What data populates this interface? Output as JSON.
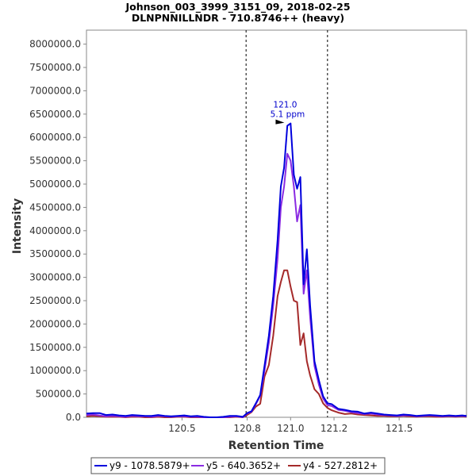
{
  "chart_data": {
    "type": "line",
    "title_line1": "Johnson_003_3999_3151_09, 2018-02-25",
    "title_line2": "DLNPNNILLNDR - 710.8746++ (heavy)",
    "xlabel": "Retention Time",
    "ylabel": "Intensity",
    "xlim": [
      120.06,
      121.81
    ],
    "ylim": [
      0,
      8300000
    ],
    "x_ticks": [
      {
        "value": 120.5,
        "label": "120.5"
      },
      {
        "value": 120.8,
        "label": "120.8"
      },
      {
        "value": 121.0,
        "label": "121.0"
      },
      {
        "value": 121.2,
        "label": "121.2"
      },
      {
        "value": 121.5,
        "label": "121.5"
      }
    ],
    "y_ticks": [
      {
        "value": 0,
        "label": "0.0"
      },
      {
        "value": 500000,
        "label": "500000.0"
      },
      {
        "value": 1000000,
        "label": "1000000.0"
      },
      {
        "value": 1500000,
        "label": "1500000.0"
      },
      {
        "value": 2000000,
        "label": "2000000.0"
      },
      {
        "value": 2500000,
        "label": "2500000.0"
      },
      {
        "value": 3000000,
        "label": "3000000.0"
      },
      {
        "value": 3500000,
        "label": "3500000.0"
      },
      {
        "value": 4000000,
        "label": "4000000.0"
      },
      {
        "value": 4500000,
        "label": "4500000.0"
      },
      {
        "value": 5000000,
        "label": "5000000.0"
      },
      {
        "value": 5500000,
        "label": "5500000.0"
      },
      {
        "value": 6000000,
        "label": "6000000.0"
      },
      {
        "value": 6500000,
        "label": "6500000.0"
      },
      {
        "value": 7000000,
        "label": "7000000.0"
      },
      {
        "value": 7500000,
        "label": "7500000.0"
      },
      {
        "value": 8000000,
        "label": "8000000.0"
      }
    ],
    "integration_bounds": [
      120.795,
      121.17
    ],
    "grid": false,
    "legend_position": "bottom",
    "annotation": {
      "x": 120.975,
      "y": 6300000,
      "line1": "121.0",
      "line2": "5.1 ppm",
      "color": "#0000cc"
    },
    "series": [
      {
        "name": "y9 - 1078.5879+",
        "color": "#0000dd",
        "x": [
          120.06,
          120.09,
          120.12,
          120.15,
          120.18,
          120.21,
          120.24,
          120.27,
          120.3,
          120.33,
          120.36,
          120.39,
          120.42,
          120.45,
          120.48,
          120.51,
          120.54,
          120.57,
          120.6,
          120.63,
          120.66,
          120.69,
          120.72,
          120.75,
          120.78,
          120.8,
          120.82,
          120.84,
          120.86,
          120.88,
          120.9,
          120.92,
          120.94,
          120.955,
          120.97,
          120.985,
          121.0,
          121.015,
          121.03,
          121.045,
          121.06,
          121.075,
          121.09,
          121.11,
          121.13,
          121.15,
          121.17,
          121.19,
          121.22,
          121.25,
          121.28,
          121.31,
          121.34,
          121.37,
          121.4,
          121.43,
          121.46,
          121.49,
          121.52,
          121.55,
          121.58,
          121.61,
          121.64,
          121.67,
          121.7,
          121.73,
          121.76,
          121.79,
          121.81
        ],
        "values": [
          80000,
          90000,
          90000,
          50000,
          60000,
          40000,
          30000,
          50000,
          40000,
          30000,
          30000,
          50000,
          30000,
          20000,
          30000,
          40000,
          20000,
          30000,
          10000,
          0,
          0,
          10000,
          30000,
          30000,
          10000,
          90000,
          130000,
          300000,
          480000,
          1100000,
          1750000,
          2600000,
          3800000,
          4950000,
          5350000,
          6250000,
          6300000,
          5200000,
          4900000,
          5150000,
          2850000,
          3600000,
          2400000,
          1200000,
          800000,
          450000,
          300000,
          280000,
          180000,
          160000,
          130000,
          120000,
          80000,
          100000,
          80000,
          60000,
          50000,
          40000,
          60000,
          50000,
          30000,
          40000,
          50000,
          40000,
          30000,
          40000,
          30000,
          40000,
          30000
        ]
      },
      {
        "name": "y5 - 640.3652+",
        "color": "#8a2be2",
        "x": [
          120.06,
          120.09,
          120.12,
          120.15,
          120.18,
          120.21,
          120.24,
          120.27,
          120.3,
          120.33,
          120.36,
          120.39,
          120.42,
          120.45,
          120.48,
          120.51,
          120.54,
          120.57,
          120.6,
          120.63,
          120.66,
          120.69,
          120.72,
          120.75,
          120.78,
          120.8,
          120.82,
          120.84,
          120.86,
          120.88,
          120.9,
          120.92,
          120.94,
          120.955,
          120.97,
          120.985,
          121.0,
          121.015,
          121.03,
          121.045,
          121.06,
          121.075,
          121.09,
          121.11,
          121.13,
          121.15,
          121.17,
          121.19,
          121.22,
          121.25,
          121.28,
          121.31,
          121.34,
          121.37,
          121.4,
          121.43,
          121.46,
          121.49,
          121.52,
          121.55,
          121.58,
          121.61,
          121.64,
          121.67,
          121.7,
          121.73,
          121.76,
          121.79,
          121.81
        ],
        "values": [
          50000,
          60000,
          40000,
          20000,
          30000,
          20000,
          10000,
          30000,
          20000,
          20000,
          10000,
          30000,
          20000,
          10000,
          20000,
          20000,
          10000,
          10000,
          0,
          0,
          0,
          0,
          10000,
          20000,
          0,
          80000,
          120000,
          280000,
          460000,
          1000000,
          1600000,
          2400000,
          3400000,
          4500000,
          4950000,
          5650000,
          5500000,
          4950000,
          4200000,
          4550000,
          2650000,
          3150000,
          2150000,
          1100000,
          700000,
          400000,
          260000,
          240000,
          160000,
          140000,
          110000,
          90000,
          70000,
          80000,
          60000,
          50000,
          40000,
          30000,
          40000,
          40000,
          20000,
          30000,
          40000,
          30000,
          20000,
          30000,
          20000,
          30000,
          20000
        ]
      },
      {
        "name": "y4 - 527.2812+",
        "color": "#a52a2a",
        "x": [
          120.06,
          120.09,
          120.12,
          120.15,
          120.18,
          120.21,
          120.24,
          120.27,
          120.3,
          120.33,
          120.36,
          120.39,
          120.42,
          120.45,
          120.48,
          120.51,
          120.54,
          120.57,
          120.6,
          120.63,
          120.66,
          120.69,
          120.72,
          120.75,
          120.78,
          120.8,
          120.82,
          120.84,
          120.86,
          120.88,
          120.9,
          120.92,
          120.94,
          120.955,
          120.97,
          120.985,
          121.0,
          121.015,
          121.03,
          121.045,
          121.06,
          121.075,
          121.09,
          121.11,
          121.13,
          121.15,
          121.17,
          121.19,
          121.22,
          121.25,
          121.28,
          121.31,
          121.34,
          121.37,
          121.4,
          121.43,
          121.46,
          121.49,
          121.52,
          121.55,
          121.58,
          121.61,
          121.64,
          121.67,
          121.7,
          121.73,
          121.76,
          121.79,
          121.81
        ],
        "values": [
          20000,
          30000,
          20000,
          10000,
          10000,
          10000,
          0,
          10000,
          10000,
          0,
          0,
          10000,
          0,
          0,
          10000,
          10000,
          0,
          0,
          0,
          0,
          0,
          0,
          0,
          10000,
          0,
          50000,
          110000,
          230000,
          290000,
          870000,
          1120000,
          1750000,
          2600000,
          2900000,
          3150000,
          3150000,
          2800000,
          2500000,
          2470000,
          1550000,
          1800000,
          1200000,
          900000,
          600000,
          500000,
          300000,
          200000,
          150000,
          100000,
          70000,
          80000,
          60000,
          50000,
          40000,
          30000,
          30000,
          20000,
          20000,
          30000,
          20000,
          10000,
          20000,
          20000,
          10000,
          10000,
          20000,
          10000,
          20000,
          10000
        ]
      }
    ]
  }
}
